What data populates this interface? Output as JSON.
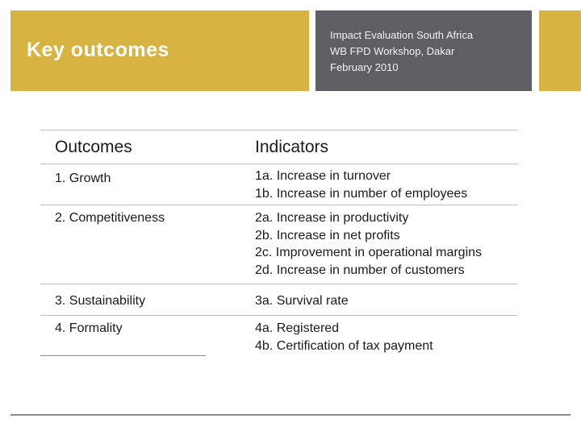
{
  "slide": {
    "title": "Key outcomes",
    "info": {
      "line1": "Impact Evaluation South Africa",
      "line2": "WB FPD Workshop, Dakar",
      "line3": "February 2010"
    },
    "colors": {
      "accent": "#d7b341",
      "info_background": "#5f5f63",
      "rule": "#8c8c8c"
    }
  },
  "table": {
    "headers": {
      "outcomes": "Outcomes",
      "indicators": "Indicators"
    },
    "rows": [
      {
        "outcome": "1. Growth",
        "indicators": [
          "1a. Increase in turnover",
          "1b. Increase in number of employees"
        ]
      },
      {
        "outcome": "2. Competitiveness",
        "indicators": [
          "2a. Increase in productivity",
          "2b. Increase in net profits",
          "2c. Improvement in operational margins",
          "2d. Increase in number of customers"
        ]
      },
      {
        "outcome": "3. Sustainability",
        "indicators": [
          "3a. Survival rate"
        ]
      },
      {
        "outcome": "4. Formality",
        "indicators": [
          "4a. Registered",
          "4b. Certification of tax payment"
        ]
      }
    ]
  }
}
